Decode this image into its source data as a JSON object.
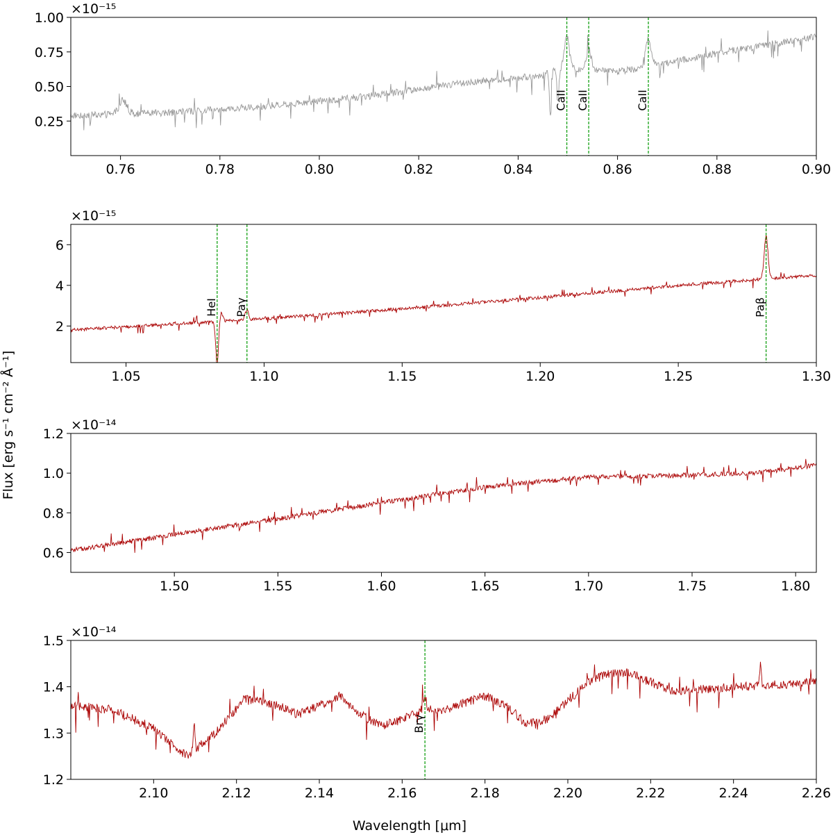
{
  "figure": {
    "ylabel": "Flux [erg s⁻¹ cm⁻² Å⁻¹]",
    "xlabel": "Wavelength [μm]"
  },
  "chart_data": [
    {
      "type": "line",
      "title": "",
      "color": "#999999",
      "xlim": [
        0.75,
        0.9
      ],
      "ylim": [
        0.0,
        1.0
      ],
      "multiplier_label": "×10⁻¹⁵",
      "xticks": [
        0.76,
        0.78,
        0.8,
        0.82,
        0.84,
        0.86,
        0.88,
        0.9
      ],
      "xtick_labels": [
        "0.76",
        "0.78",
        "0.80",
        "0.82",
        "0.84",
        "0.86",
        "0.88",
        "0.90"
      ],
      "yticks": [
        0.25,
        0.5,
        0.75,
        1.0
      ],
      "ytick_labels": [
        "0.25",
        "0.50",
        "0.75",
        "1.00"
      ],
      "continuum": [
        [
          0.75,
          0.29
        ],
        [
          0.77,
          0.31
        ],
        [
          0.79,
          0.36
        ],
        [
          0.81,
          0.43
        ],
        [
          0.83,
          0.53
        ],
        [
          0.845,
          0.58
        ],
        [
          0.847,
          0.63
        ],
        [
          0.86,
          0.61
        ],
        [
          0.865,
          0.63
        ],
        [
          0.87,
          0.67
        ],
        [
          0.88,
          0.74
        ],
        [
          0.9,
          0.86
        ]
      ],
      "noise": 0.025,
      "features": [
        [
          0.8498,
          0.24,
          0.0005
        ],
        [
          0.8542,
          0.15,
          0.0005
        ],
        [
          0.8662,
          0.2,
          0.0006
        ],
        [
          0.7605,
          0.1,
          0.0008
        ],
        [
          0.8465,
          -0.35,
          0.0002
        ],
        [
          0.848,
          -0.25,
          0.0002
        ]
      ],
      "lines": [
        {
          "x": 0.8498,
          "label": "CaII"
        },
        {
          "x": 0.8542,
          "label": "CaII"
        },
        {
          "x": 0.8662,
          "label": "CaII"
        }
      ]
    },
    {
      "type": "line",
      "title": "",
      "color": "#aa0000",
      "xlim": [
        1.03,
        1.3
      ],
      "ylim": [
        0.2,
        7.0
      ],
      "multiplier_label": "×10⁻¹⁵",
      "xticks": [
        1.05,
        1.1,
        1.15,
        1.2,
        1.25,
        1.3
      ],
      "xtick_labels": [
        "1.05",
        "1.10",
        "1.15",
        "1.20",
        "1.25",
        "1.30"
      ],
      "yticks": [
        2,
        4,
        6
      ],
      "ytick_labels": [
        "2",
        "4",
        "6"
      ],
      "continuum": [
        [
          1.03,
          1.8
        ],
        [
          1.08,
          2.2
        ],
        [
          1.1,
          2.35
        ],
        [
          1.15,
          2.85
        ],
        [
          1.2,
          3.4
        ],
        [
          1.25,
          4.0
        ],
        [
          1.3,
          4.5
        ]
      ],
      "noise": 0.08,
      "features": [
        [
          1.083,
          -2.1,
          0.0005
        ],
        [
          1.0845,
          0.4,
          0.0006
        ],
        [
          1.0938,
          0.5,
          0.0006
        ],
        [
          1.2818,
          2.1,
          0.0007
        ]
      ],
      "lines": [
        {
          "x": 1.083,
          "label": "HeI"
        },
        {
          "x": 1.0938,
          "label": "Paγ"
        },
        {
          "x": 1.2818,
          "label": "Paβ"
        }
      ]
    },
    {
      "type": "line",
      "title": "",
      "color": "#aa0000",
      "xlim": [
        1.45,
        1.81
      ],
      "ylim": [
        0.5,
        1.2
      ],
      "multiplier_label": "×10⁻¹⁴",
      "xticks": [
        1.5,
        1.55,
        1.6,
        1.65,
        1.7,
        1.75,
        1.8
      ],
      "xtick_labels": [
        "1.50",
        "1.55",
        "1.60",
        "1.65",
        "1.70",
        "1.75",
        "1.80"
      ],
      "yticks": [
        0.6,
        0.8,
        1.0,
        1.2
      ],
      "ytick_labels": [
        "0.6",
        "0.8",
        "1.0",
        "1.2"
      ],
      "continuum": [
        [
          1.45,
          0.61
        ],
        [
          1.5,
          0.69
        ],
        [
          1.55,
          0.77
        ],
        [
          1.6,
          0.85
        ],
        [
          1.65,
          0.93
        ],
        [
          1.7,
          0.98
        ],
        [
          1.75,
          0.99
        ],
        [
          1.78,
          1.0
        ],
        [
          1.81,
          1.04
        ]
      ],
      "noise": 0.012,
      "features": [],
      "lines": []
    },
    {
      "type": "line",
      "title": "",
      "color": "#aa0000",
      "xlim": [
        2.08,
        2.26
      ],
      "ylim": [
        1.2,
        1.5
      ],
      "multiplier_label": "×10⁻¹⁴",
      "xticks": [
        2.1,
        2.12,
        2.14,
        2.16,
        2.18,
        2.2,
        2.22,
        2.24,
        2.26
      ],
      "xtick_labels": [
        "2.10",
        "2.12",
        "2.14",
        "2.16",
        "2.18",
        "2.20",
        "2.22",
        "2.24",
        "2.26"
      ],
      "yticks": [
        1.2,
        1.3,
        1.4,
        1.5
      ],
      "ytick_labels": [
        "1.2",
        "1.3",
        "1.4",
        "1.5"
      ],
      "continuum": [
        [
          2.08,
          1.36
        ],
        [
          2.09,
          1.35
        ],
        [
          2.1,
          1.31
        ],
        [
          2.108,
          1.25
        ],
        [
          2.115,
          1.3
        ],
        [
          2.122,
          1.375
        ],
        [
          2.13,
          1.36
        ],
        [
          2.135,
          1.34
        ],
        [
          2.145,
          1.38
        ],
        [
          2.15,
          1.34
        ],
        [
          2.155,
          1.315
        ],
        [
          2.16,
          1.33
        ],
        [
          2.165,
          1.35
        ],
        [
          2.17,
          1.35
        ],
        [
          2.18,
          1.38
        ],
        [
          2.185,
          1.36
        ],
        [
          2.19,
          1.32
        ],
        [
          2.195,
          1.33
        ],
        [
          2.205,
          1.41
        ],
        [
          2.21,
          1.43
        ],
        [
          2.215,
          1.43
        ],
        [
          2.22,
          1.41
        ],
        [
          2.225,
          1.39
        ],
        [
          2.26,
          1.41
        ]
      ],
      "noise": 0.01,
      "features": [
        [
          2.1655,
          0.025,
          0.0004
        ],
        [
          2.1098,
          0.055,
          0.0002
        ],
        [
          2.2465,
          0.05,
          0.0002
        ]
      ],
      "lines": [
        {
          "x": 2.1655,
          "label": "Brγ"
        }
      ]
    }
  ]
}
